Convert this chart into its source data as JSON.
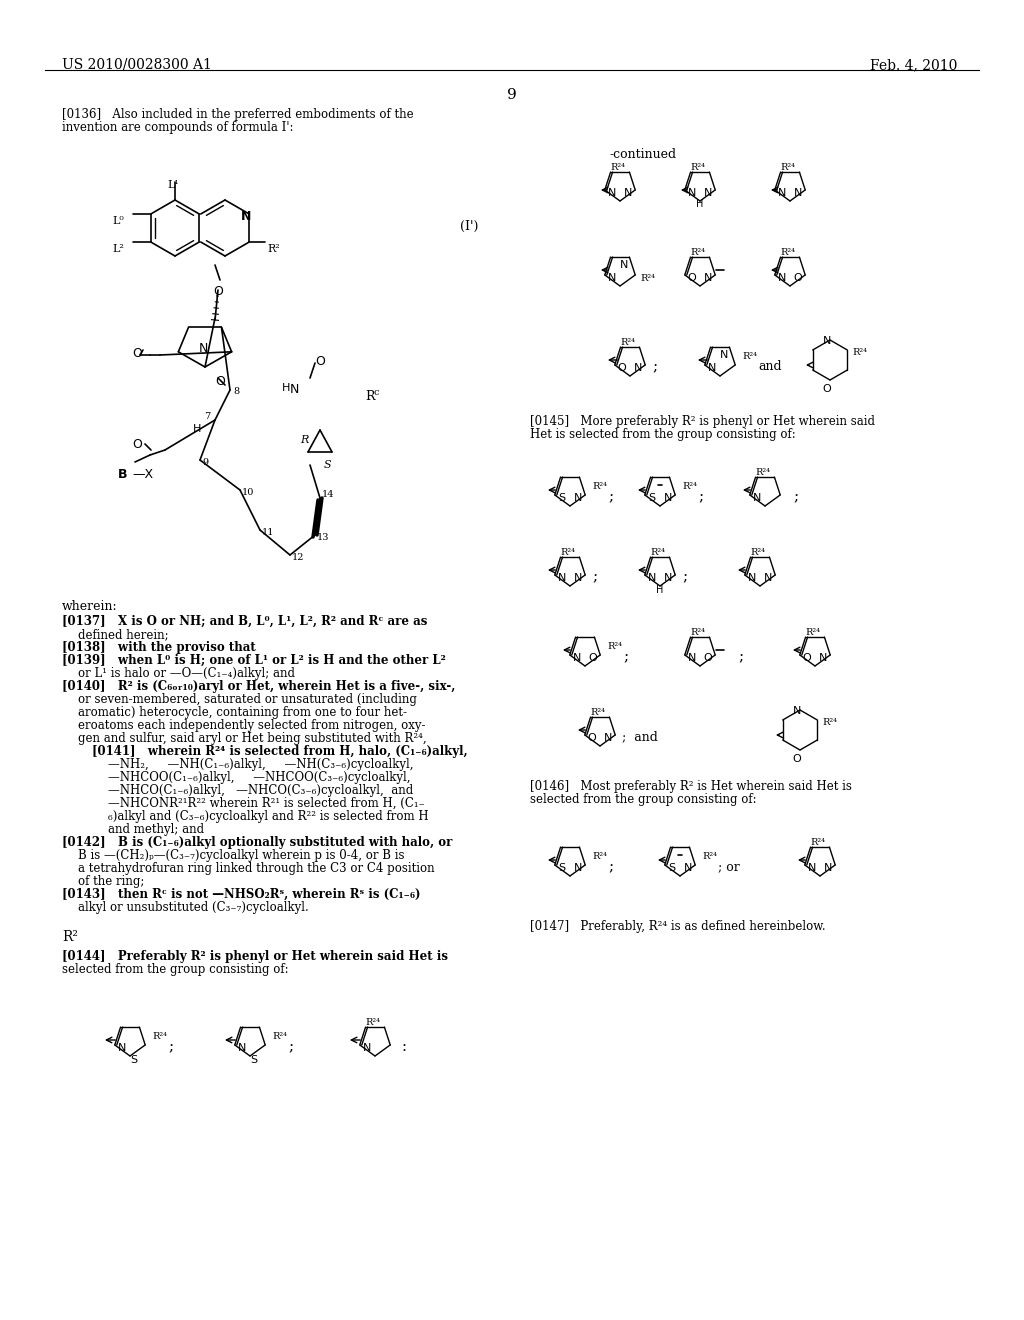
{
  "page_number": "9",
  "header_left": "US 2010/0028300 A1",
  "header_right": "Feb. 4, 2010",
  "background_color": "#ffffff",
  "text_color": "#000000",
  "figsize": [
    10.24,
    13.2
  ],
  "dpi": 100
}
